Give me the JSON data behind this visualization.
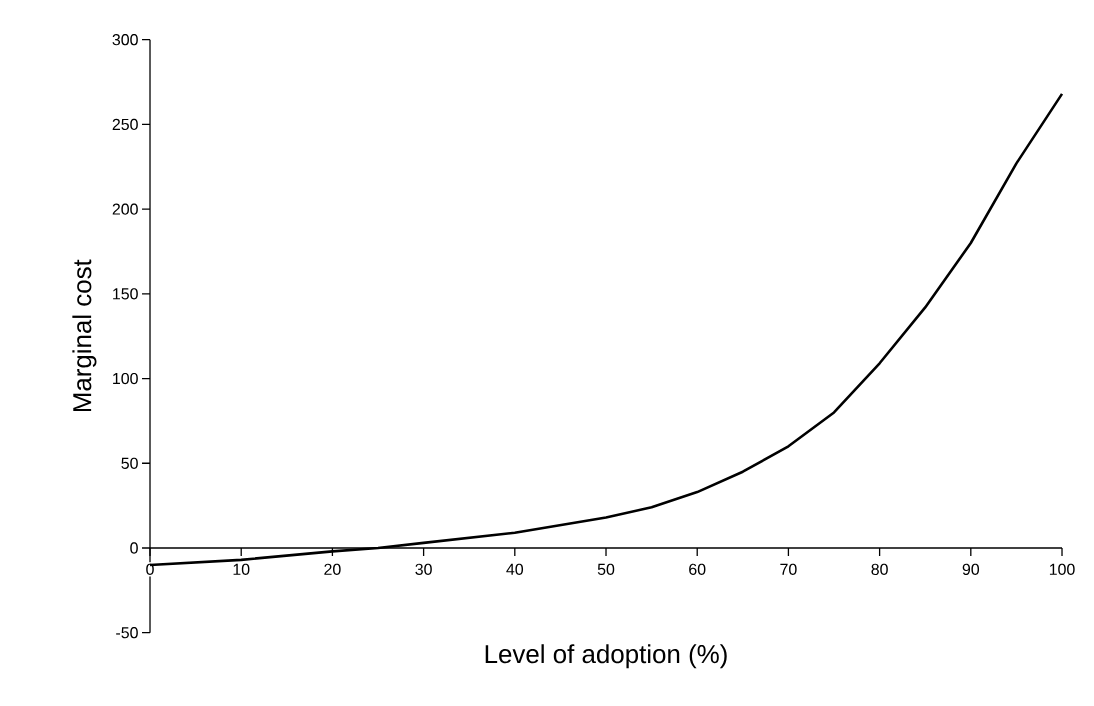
{
  "chart_data": {
    "type": "line",
    "xlabel": "Level of adoption (%)",
    "ylabel": "Marginal cost",
    "x": [
      0,
      10,
      20,
      25,
      30,
      40,
      50,
      55,
      60,
      65,
      70,
      75,
      80,
      85,
      90,
      95,
      100
    ],
    "series": [
      {
        "color": "#000000",
        "values": [
          -10,
          -7,
          -2,
          0,
          3,
          9,
          18,
          24,
          33,
          45,
          60,
          80,
          109,
          142,
          180,
          227,
          268
        ]
      }
    ],
    "xlim": [
      0,
      100
    ],
    "ylim": [
      -50,
      300
    ],
    "xticks": [
      0,
      10,
      20,
      30,
      40,
      50,
      60,
      70,
      80,
      90,
      100
    ],
    "yticks": [
      -50,
      0,
      50,
      100,
      150,
      200,
      250,
      300
    ]
  }
}
